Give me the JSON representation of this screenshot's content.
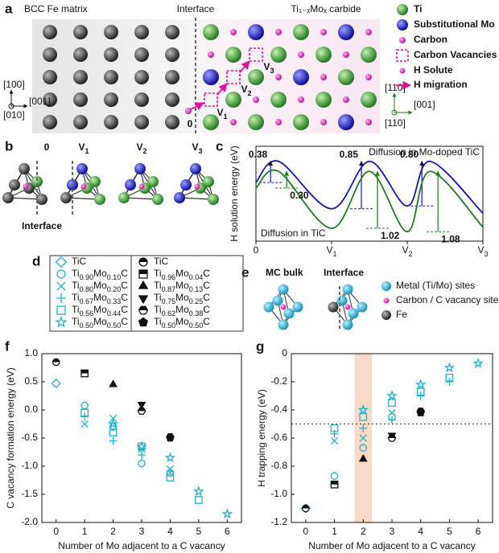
{
  "panel_labels": [
    "a",
    "b",
    "c",
    "d",
    "e",
    "f",
    "g"
  ],
  "diagrams": {
    "a": {
      "headers": [
        "BCC Fe matrix",
        "Interface",
        "Ti₁₋ₓMoₓ carbide"
      ],
      "sites": [
        "0",
        "V1",
        "V2",
        "V3"
      ],
      "axes_left": [
        "[100]",
        "[001]",
        "[010]"
      ],
      "axes_right": [
        "[110]",
        "[001]",
        "[110]"
      ],
      "legend": [
        "Ti",
        "Substitutional Mo",
        "Carbon",
        "Carbon Vacancies",
        "H Solute",
        "H migration"
      ]
    },
    "b": {
      "sites": [
        "0",
        "V1",
        "V2",
        "V3"
      ],
      "interface": "Interface"
    },
    "e": {
      "headers": [
        "MC bulk",
        "Interface"
      ],
      "legend": [
        "Metal (Ti/Mo) sites",
        "Carbon / C vacancy site",
        "Fe"
      ]
    }
  },
  "chart_data": [
    {
      "type": "line",
      "ylabel": "H solution energy (eV)",
      "x": [
        0,
        0.3,
        1,
        1.5,
        2,
        2.3,
        3
      ],
      "xlim": [
        0,
        3
      ],
      "ylim": [
        -1.0,
        0.7
      ],
      "xticks": [
        0,
        {
          "value": 1,
          "label": "V1"
        },
        {
          "value": 2,
          "label": "V2"
        },
        {
          "value": 3,
          "label": "V3"
        }
      ],
      "series": [
        {
          "name": "Diffusion in Mo-doped TiC",
          "color": "#1414b4",
          "values": [
            0.05,
            0.43,
            -0.42,
            0.43,
            -0.37,
            0.43,
            -0.5
          ],
          "barriers": [
            0.38,
            0.85,
            0.8
          ],
          "barrier_labels": [
            "0.38",
            "0.85",
            "0.80"
          ]
        },
        {
          "name": "Diffusion in TiC",
          "color": "#1e7a1e",
          "values": [
            -0.05,
            0.25,
            -0.77,
            0.25,
            -0.83,
            0.25,
            -0.75
          ],
          "barriers": [
            0.3,
            1.02,
            1.08
          ],
          "barrier_labels": [
            "0.30",
            "1.02",
            "1.08"
          ]
        }
      ]
    },
    {
      "type": "scatter",
      "xlabel": "Number of Mo adjacent to a C vacancy",
      "ylabel": "C vacancy formation energy (eV)",
      "x": [
        0,
        1,
        2,
        3,
        4,
        5,
        6
      ],
      "xlim": [
        -0.5,
        6.5
      ],
      "ylim": [
        -2.0,
        1.0
      ],
      "xticks": [
        0,
        1,
        2,
        3,
        4,
        5,
        6
      ],
      "yticks": [
        {
          "value": -2,
          "label": "-2.0"
        },
        -1.5,
        {
          "value": -1,
          "label": "-1.0"
        },
        -0.5,
        {
          "value": 0,
          "label": "0.0"
        },
        0.5,
        {
          "value": 1,
          "label": "1.0"
        }
      ],
      "series": [
        {
          "name": "TiC",
          "color": "#1fb0d0",
          "marker": "diamond",
          "values": [
            0.47,
            null,
            null,
            null,
            null,
            null,
            null
          ]
        },
        {
          "name": "Ti0.90Mo0.10C",
          "color": "#1fb0d0",
          "marker": "circle",
          "values": [
            null,
            0.08,
            -0.3,
            -0.95,
            -1.12,
            null,
            null
          ]
        },
        {
          "name": "Ti0.80Mo0.20C",
          "color": "#1fb0d0",
          "marker": "x",
          "values": [
            null,
            -0.25,
            -0.15,
            -0.7,
            -1.05,
            null,
            null
          ]
        },
        {
          "name": "Ti0.67Mo0.33C",
          "color": "#1fb0d0",
          "marker": "plus",
          "values": [
            null,
            -0.12,
            -0.55,
            -0.8,
            -1.1,
            null,
            null
          ]
        },
        {
          "name": "Ti0.56Mo0.44C",
          "color": "#1fb0d0",
          "marker": "square",
          "values": [
            null,
            -0.05,
            -0.4,
            -0.65,
            -1.2,
            -1.6,
            null
          ]
        },
        {
          "name": "Ti0.50Mo0.50C",
          "color": "#1fb0d0",
          "marker": "star",
          "values": [
            null,
            null,
            -0.25,
            -0.65,
            -0.85,
            -1.45,
            -1.85
          ]
        },
        {
          "name": "TiC",
          "color": "#111111",
          "marker": "half-circle",
          "values": [
            0.85,
            null,
            null,
            null,
            null,
            null,
            null
          ]
        },
        {
          "name": "Ti0.96Mo0.04C",
          "color": "#111111",
          "marker": "half-square",
          "values": [
            null,
            0.65,
            null,
            null,
            null,
            null,
            null
          ]
        },
        {
          "name": "Ti0.87Mo0.13C",
          "color": "#111111",
          "marker": "triangle",
          "values": [
            null,
            null,
            0.45,
            null,
            null,
            null,
            null
          ]
        },
        {
          "name": "Ti0.75Mo0.25C",
          "color": "#111111",
          "marker": "triangle-down",
          "values": [
            null,
            null,
            null,
            0.1,
            null,
            null,
            null
          ]
        },
        {
          "name": "Ti0.62Mo0.38C",
          "color": "#111111",
          "marker": "hexagon",
          "values": [
            null,
            null,
            null,
            -0.02,
            -0.48,
            null,
            null
          ]
        },
        {
          "name": "Ti0.50Mo0.50C",
          "color": "#111111",
          "marker": "pentagon",
          "values": [
            null,
            null,
            null,
            null,
            -0.5,
            null,
            null
          ]
        }
      ]
    },
    {
      "type": "scatter",
      "xlabel": "Number of Mo adjacent to a C vacancy",
      "ylabel": "H trapping energy (eV)",
      "x": [
        0,
        1,
        2,
        3,
        4,
        5,
        6
      ],
      "xlim": [
        -0.5,
        6.5
      ],
      "ylim": [
        -1.2,
        0
      ],
      "xticks": [
        0,
        1,
        2,
        3,
        4,
        5,
        6
      ],
      "yticks": [
        -1.2,
        {
          "value": -1,
          "label": "-1.0"
        },
        -0.8,
        -0.6,
        -0.4,
        -0.2,
        0
      ],
      "hline": -0.5,
      "highlight": [
        1.7,
        2.3
      ],
      "series": [
        {
          "values": [
            -1.1,
            null,
            null,
            null,
            null,
            null,
            null
          ]
        },
        {
          "values": [
            null,
            -0.87,
            -0.67,
            -0.45,
            null,
            null,
            null
          ]
        },
        {
          "values": [
            null,
            -0.62,
            -0.6,
            -0.42,
            -0.42,
            null,
            null
          ]
        },
        {
          "values": [
            null,
            -0.57,
            -0.53,
            -0.47,
            -0.3,
            -0.2,
            null
          ]
        },
        {
          "values": [
            null,
            -0.53,
            -0.45,
            -0.35,
            -0.27,
            -0.17,
            null
          ]
        },
        {
          "values": [
            null,
            null,
            -0.4,
            -0.3,
            -0.22,
            -0.1,
            -0.07
          ]
        },
        {
          "values": [
            -1.1,
            null,
            null,
            null,
            null,
            null,
            null
          ]
        },
        {
          "values": [
            null,
            -0.93,
            null,
            null,
            null,
            null,
            null
          ]
        },
        {
          "values": [
            null,
            null,
            -0.75,
            null,
            null,
            null,
            null
          ]
        },
        {
          "values": [
            null,
            null,
            null,
            -0.58,
            null,
            null,
            null
          ]
        },
        {
          "values": [
            null,
            null,
            null,
            -0.6,
            -0.41,
            null,
            null
          ]
        },
        {
          "values": [
            null,
            null,
            null,
            null,
            -0.42,
            null,
            null
          ]
        }
      ]
    }
  ]
}
